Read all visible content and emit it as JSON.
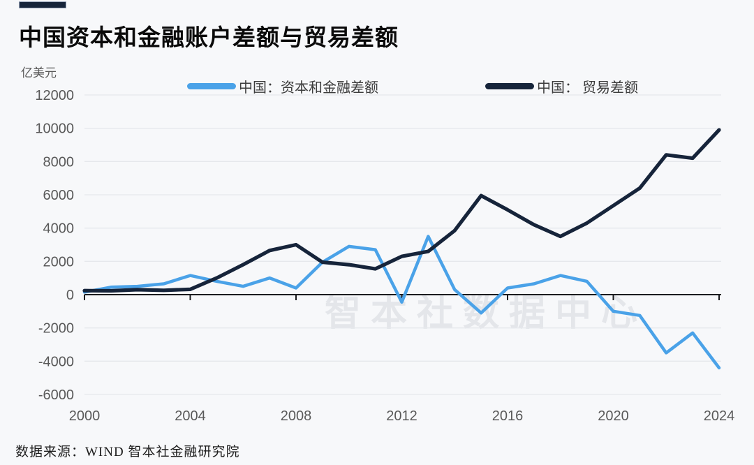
{
  "header": {
    "title": "中国资本和金融账户差额与贸易差额"
  },
  "unit_label": "亿美元",
  "legend": [
    {
      "label": "中国：资本和金融差额",
      "color": "#4aa2e8"
    },
    {
      "label": "中国： 贸易差额",
      "color": "#16243a"
    }
  ],
  "watermark": "智本社数据中心",
  "footer": {
    "source": "数据来源：WIND 智本社金融研究院"
  },
  "colors": {
    "background": "#f7f8fa",
    "gridline": "#e6e8ec",
    "zero_axis": "#1a1b1e",
    "tick_label": "#595959",
    "watermark": "#e4e6ea",
    "accent_bar": "#16243a",
    "series_blue": "#4aa2e8",
    "series_navy": "#16243a"
  },
  "chart_data": {
    "type": "line",
    "title": "中国资本和金融账户差额与贸易差额",
    "ylabel": "亿美元",
    "xlabel": "",
    "x": [
      2000,
      2001,
      2002,
      2003,
      2004,
      2005,
      2006,
      2007,
      2008,
      2009,
      2010,
      2011,
      2012,
      2013,
      2014,
      2015,
      2016,
      2017,
      2018,
      2019,
      2020,
      2021,
      2022,
      2023,
      2024
    ],
    "series": [
      {
        "name": "中国：资本和金融差额",
        "color": "#4aa2e8",
        "values": [
          150,
          450,
          500,
          650,
          1150,
          800,
          500,
          1000,
          400,
          1950,
          2900,
          2700,
          -450,
          3500,
          300,
          -1100,
          400,
          650,
          1150,
          800,
          -1000,
          -1250,
          -3500,
          -2300,
          -4400
        ]
      },
      {
        "name": "中国：贸易差额",
        "color": "#16243a",
        "values": [
          240,
          230,
          300,
          260,
          320,
          1000,
          1800,
          2650,
          3000,
          1950,
          1800,
          1550,
          2300,
          2600,
          3850,
          5950,
          5100,
          4200,
          3500,
          4300,
          5350,
          6400,
          8400,
          8200,
          9900
        ]
      }
    ],
    "ylim": [
      -6000,
      12000
    ],
    "y_ticks": [
      12000,
      10000,
      8000,
      6000,
      4000,
      2000,
      0,
      -2000,
      -4000,
      -6000
    ],
    "x_ticks": [
      2000,
      2004,
      2008,
      2012,
      2016,
      2020,
      2024
    ],
    "grid": true,
    "legend_position": "top"
  }
}
